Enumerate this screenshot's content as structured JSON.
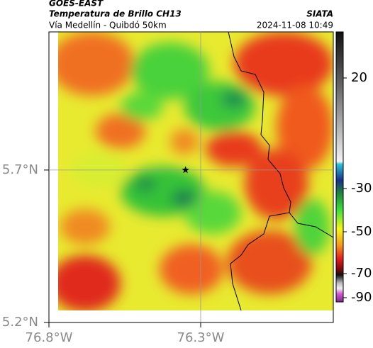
{
  "header": {
    "source": "GOES-EAST",
    "product": "Temperatura de Brillo CH13",
    "agency": "SIATA",
    "region": "Vía Medellín - Quibdó 50km",
    "datetime": "2024-11-08 10:49"
  },
  "map": {
    "lon_range": [
      -76.8,
      -75.863
    ],
    "lat_range": [
      5.2,
      6.153
    ],
    "lat_ticks": [
      {
        "value": 5.7,
        "label": "5.7°N"
      },
      {
        "value": 5.2,
        "label": "5.2°N"
      }
    ],
    "lon_ticks": [
      {
        "value": -76.8,
        "label": "76.8°W"
      },
      {
        "value": -76.3,
        "label": "76.3°W"
      }
    ],
    "marker": {
      "lat": 5.7,
      "lon": -76.35
    }
  },
  "colorbar": {
    "ticks": [
      20,
      -30,
      -50,
      -70,
      -90
    ]
  }
}
